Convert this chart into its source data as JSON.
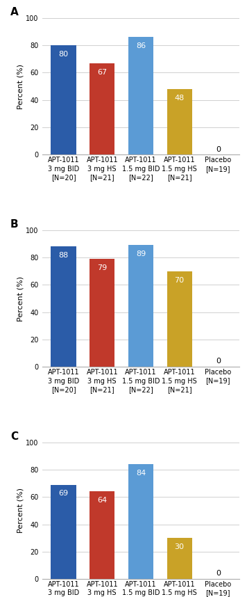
{
  "panels": [
    {
      "label": "A",
      "values": [
        80,
        67,
        86,
        48,
        0
      ],
      "bar_colors": [
        "#2b5ca8",
        "#c0392b",
        "#5b9bd5",
        "#c9a227",
        "#ffffff"
      ],
      "label_colors": [
        "white",
        "white",
        "white",
        "white",
        "black"
      ]
    },
    {
      "label": "B",
      "values": [
        88,
        79,
        89,
        70,
        0
      ],
      "bar_colors": [
        "#2b5ca8",
        "#c0392b",
        "#5b9bd5",
        "#c9a227",
        "#ffffff"
      ],
      "label_colors": [
        "white",
        "white",
        "white",
        "white",
        "black"
      ]
    },
    {
      "label": "C",
      "values": [
        69,
        64,
        84,
        30,
        0
      ],
      "bar_colors": [
        "#2b5ca8",
        "#c0392b",
        "#5b9bd5",
        "#c9a227",
        "#ffffff"
      ],
      "label_colors": [
        "white",
        "white",
        "white",
        "white",
        "black"
      ]
    }
  ],
  "categories": [
    "APT-1011\n3 mg BID\n[N=20]",
    "APT-1011\n3 mg HS\n[N=21]",
    "APT-1011\n1.5 mg BID\n[N=22]",
    "APT-1011\n1.5 mg HS\n[N=21]",
    "Placebo\n[N=19]"
  ],
  "ylim": [
    0,
    100
  ],
  "yticks": [
    0,
    20,
    40,
    60,
    80,
    100
  ],
  "ylabel": "Percent (%)",
  "background_color": "#ffffff",
  "grid_color": "#d0d0d0",
  "bar_width": 0.65,
  "tick_fontsize": 7,
  "ylabel_fontsize": 8,
  "panel_label_fontsize": 11,
  "value_fontsize": 8,
  "xtick_fontsize": 7
}
